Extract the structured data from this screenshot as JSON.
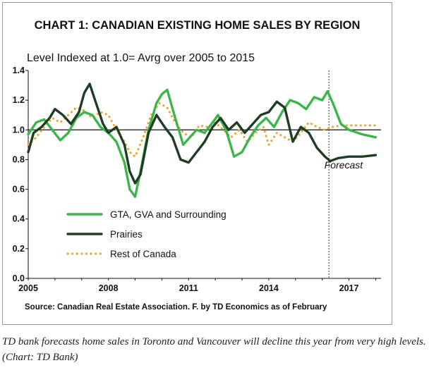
{
  "chart_data": {
    "type": "line",
    "title": "CHART 1: CANADIAN EXISTING HOME SALES BY REGION",
    "subtitle": "Level Indexed at 1.0= Avrg over 2005 to 2015",
    "xlabel": "",
    "ylabel": "",
    "xlim": [
      2005,
      2018.2
    ],
    "ylim": [
      0,
      1.4
    ],
    "y_ticks": [
      "0.0",
      "0.2",
      "0.4",
      "0.6",
      "0.8",
      "1.0",
      "1.2",
      "1.4"
    ],
    "x_ticks": [
      "2005",
      "2008",
      "2011",
      "2014",
      "2017"
    ],
    "x_tick_values": [
      2005,
      2008,
      2011,
      2014,
      2017
    ],
    "reference_line": 1.0,
    "forecast_start": 2016.25,
    "annotations": [
      {
        "text": "Forecast",
        "x": 2016.8,
        "y": 0.74
      }
    ],
    "legend_position": "bottom-left",
    "grid": false,
    "series": [
      {
        "name": "GTA, GVA and Surrounding",
        "color": "#3cb54a",
        "style": "solid",
        "x": [
          2005.0,
          2005.3,
          2005.6,
          2005.9,
          2006.2,
          2006.5,
          2006.8,
          2007.1,
          2007.4,
          2007.7,
          2008.0,
          2008.3,
          2008.6,
          2008.8,
          2009.0,
          2009.2,
          2009.5,
          2009.8,
          2010.0,
          2010.2,
          2010.5,
          2010.8,
          2011.0,
          2011.3,
          2011.6,
          2011.9,
          2012.1,
          2012.4,
          2012.7,
          2013.0,
          2013.3,
          2013.6,
          2013.9,
          2014.2,
          2014.5,
          2014.8,
          2015.1,
          2015.4,
          2015.7,
          2016.0,
          2016.2,
          2016.4,
          2016.7,
          2017.0,
          2017.5,
          2018.0
        ],
        "y": [
          0.97,
          1.05,
          1.07,
          1.0,
          0.93,
          0.98,
          1.08,
          1.12,
          1.1,
          1.02,
          0.98,
          0.92,
          0.78,
          0.6,
          0.55,
          0.72,
          1.0,
          1.18,
          1.24,
          1.27,
          1.08,
          0.9,
          0.94,
          1.0,
          0.98,
          1.05,
          1.1,
          1.0,
          0.82,
          0.85,
          0.95,
          1.03,
          1.08,
          1.02,
          1.12,
          1.2,
          1.18,
          1.14,
          1.22,
          1.2,
          1.26,
          1.18,
          1.04,
          1.0,
          0.97,
          0.95
        ]
      },
      {
        "name": "Prairies",
        "color": "#1f3d25",
        "style": "solid",
        "x": [
          2005.0,
          2005.2,
          2005.5,
          2005.8,
          2006.0,
          2006.3,
          2006.6,
          2006.9,
          2007.1,
          2007.3,
          2007.5,
          2007.8,
          2008.0,
          2008.3,
          2008.6,
          2008.8,
          2009.0,
          2009.2,
          2009.5,
          2009.8,
          2010.1,
          2010.4,
          2010.7,
          2011.0,
          2011.3,
          2011.6,
          2011.9,
          2012.2,
          2012.5,
          2012.8,
          2013.1,
          2013.4,
          2013.7,
          2014.0,
          2014.3,
          2014.6,
          2014.9,
          2015.2,
          2015.5,
          2015.8,
          2016.1,
          2016.3,
          2016.6,
          2017.0,
          2017.5,
          2018.0
        ],
        "y": [
          0.85,
          0.98,
          1.02,
          1.08,
          1.14,
          1.1,
          1.04,
          1.12,
          1.25,
          1.31,
          1.2,
          1.04,
          0.98,
          1.02,
          0.9,
          0.72,
          0.64,
          0.7,
          0.98,
          1.1,
          1.02,
          0.95,
          0.8,
          0.78,
          0.85,
          0.92,
          1.02,
          1.08,
          1.0,
          1.05,
          0.98,
          1.04,
          1.1,
          1.12,
          1.19,
          1.15,
          0.92,
          1.02,
          0.98,
          0.88,
          0.82,
          0.79,
          0.81,
          0.82,
          0.82,
          0.83
        ]
      },
      {
        "name": "Rest of Canada",
        "color": "#e7a93c",
        "style": "dotted",
        "x": [
          2005.0,
          2005.3,
          2005.6,
          2005.9,
          2006.2,
          2006.5,
          2006.8,
          2007.1,
          2007.4,
          2007.7,
          2008.0,
          2008.3,
          2008.6,
          2008.8,
          2009.0,
          2009.3,
          2009.6,
          2009.9,
          2010.2,
          2010.5,
          2010.8,
          2011.1,
          2011.4,
          2011.7,
          2012.0,
          2012.3,
          2012.6,
          2012.9,
          2013.2,
          2013.5,
          2013.8,
          2014.0,
          2014.3,
          2014.6,
          2014.9,
          2015.2,
          2015.5,
          2015.8,
          2016.1,
          2016.4,
          2016.7,
          2017.0,
          2017.5,
          2018.0
        ],
        "y": [
          0.9,
          0.95,
          1.02,
          1.08,
          1.05,
          1.1,
          1.15,
          1.13,
          1.08,
          1.12,
          1.1,
          1.0,
          0.92,
          0.85,
          0.82,
          0.95,
          1.1,
          1.18,
          1.15,
          1.05,
          0.98,
          0.95,
          1.03,
          1.02,
          1.05,
          1.0,
          0.95,
          1.0,
          0.92,
          0.98,
          1.02,
          0.9,
          0.98,
          0.95,
          0.92,
          0.98,
          1.05,
          1.02,
          1.0,
          1.02,
          1.03,
          1.03,
          1.03,
          1.03
        ]
      }
    ]
  },
  "source": "Source: Canadian Real Estate Association. F. by TD Economics as of February",
  "caption": "TD bank forecasts home sales in Toronto and Vancouver will decline this year from very high levels. (Chart: TD Bank)"
}
